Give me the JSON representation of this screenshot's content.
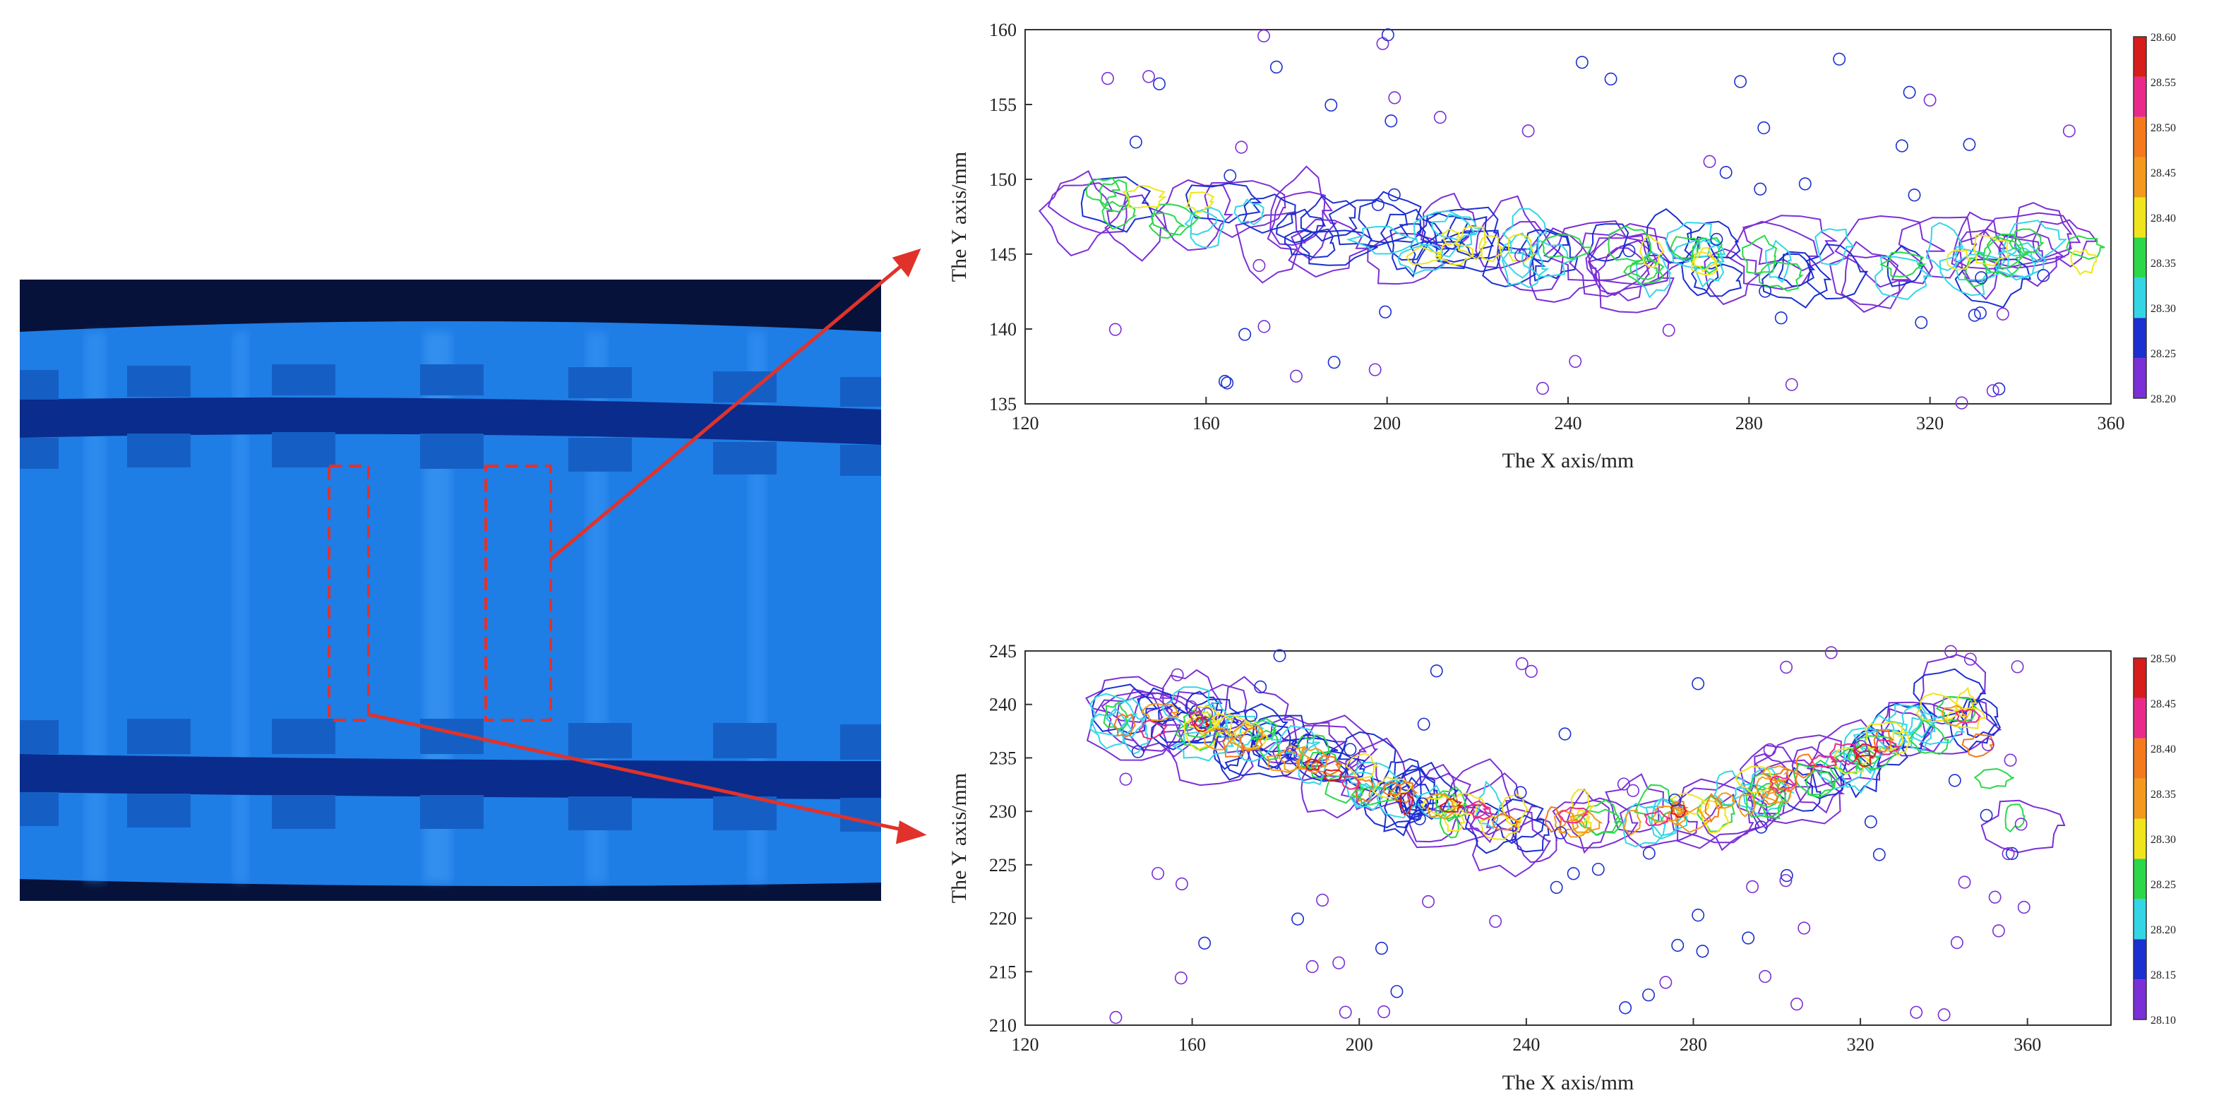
{
  "thermal_image": {
    "background_color": "#1f7de6",
    "band_color": "#0a2c8c",
    "dark_edge_color": "#06123a",
    "marker_color": "#e0322b"
  },
  "chart_data": [
    {
      "type": "contour",
      "xlabel": "The X axis/mm",
      "ylabel": "The Y axis/mm",
      "xlim": [
        120,
        360
      ],
      "ylim": [
        135,
        160
      ],
      "xticks": [
        "120",
        "160",
        "200",
        "240",
        "280",
        "320",
        "360"
      ],
      "yticks": [
        "135",
        "140",
        "145",
        "150",
        "155",
        "160"
      ],
      "colorbar": {
        "levels": [
          "28.20",
          "28.25",
          "28.30",
          "28.35",
          "28.40",
          "28.45",
          "28.50",
          "28.55",
          "28.60"
        ],
        "colors": [
          "#7b2fd6",
          "#1c2fd0",
          "#34d6e6",
          "#2bd84a",
          "#f0e51c",
          "#f39a1c",
          "#f47a1c",
          "#ea2a8a",
          "#d81c1c"
        ]
      },
      "feature": {
        "description_points_x": [
          130,
          160,
          200,
          240,
          280,
          320,
          355
        ],
        "center_y": [
          148.5,
          147.5,
          146,
          145,
          144.5,
          144.5,
          145
        ],
        "peak_level": 28.45
      },
      "grid": false,
      "legend": "right"
    },
    {
      "type": "contour",
      "xlabel": "The X axis/mm",
      "ylabel": "The Y axis/mm",
      "xlim": [
        120,
        380
      ],
      "ylim": [
        210,
        245
      ],
      "xticks": [
        "120",
        "160",
        "200",
        "240",
        "280",
        "320",
        "360"
      ],
      "yticks": [
        "210",
        "215",
        "220",
        "225",
        "230",
        "235",
        "240",
        "245"
      ],
      "colorbar": {
        "levels": [
          "28.10",
          "28.15",
          "28.20",
          "28.25",
          "28.30",
          "28.35",
          "28.40",
          "28.45",
          "28.50"
        ],
        "colors": [
          "#7b2fd6",
          "#1c2fd0",
          "#34d6e6",
          "#2bd84a",
          "#f0e51c",
          "#f39a1c",
          "#f47a1c",
          "#ea2a8a",
          "#d81c1c"
        ]
      },
      "feature": {
        "description_points_x": [
          140,
          160,
          180,
          200,
          220,
          240,
          280,
          320,
          345,
          360
        ],
        "center_y": [
          239,
          238,
          236,
          233,
          230,
          229,
          230,
          235,
          240,
          228
        ],
        "peak_level": 28.5
      },
      "grid": false,
      "legend": "right"
    }
  ]
}
